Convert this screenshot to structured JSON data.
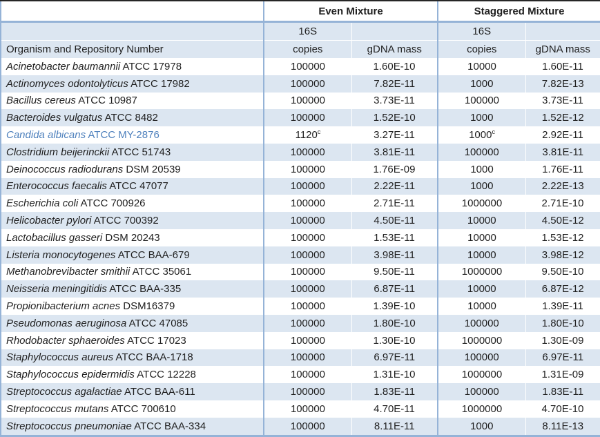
{
  "table": {
    "organism_header": "Organism and Repository Number",
    "group_headers": {
      "even": "Even Mixture",
      "staggered": "Staggered Mixture"
    },
    "subheaders": {
      "line1": "16S",
      "copies": "copies",
      "gdna_mass": "gDNA mass"
    },
    "footnote_marker": "c",
    "rows": [
      {
        "name": "Acinetobacter baumannii",
        "repo": "ATCC 17978",
        "even_copies": "100000",
        "even_sup": "",
        "even_mass": "1.60E-10",
        "stag_copies": "10000",
        "stag_sup": "",
        "stag_mass": "1.60E-11",
        "highlight": false
      },
      {
        "name": "Actinomyces odontolyticus",
        "repo": "ATCC 17982",
        "even_copies": "100000",
        "even_sup": "",
        "even_mass": "7.82E-11",
        "stag_copies": "1000",
        "stag_sup": "",
        "stag_mass": "7.82E-13",
        "highlight": false
      },
      {
        "name": "Bacillus cereus",
        "repo": "ATCC 10987",
        "even_copies": "100000",
        "even_sup": "",
        "even_mass": "3.73E-11",
        "stag_copies": "100000",
        "stag_sup": "",
        "stag_mass": "3.73E-11",
        "highlight": false
      },
      {
        "name": "Bacteroides vulgatus",
        "repo": "ATCC 8482",
        "even_copies": "100000",
        "even_sup": "",
        "even_mass": "1.52E-10",
        "stag_copies": "1000",
        "stag_sup": "",
        "stag_mass": "1.52E-12",
        "highlight": false
      },
      {
        "name": "Candida albicans",
        "repo": "ATCC MY-2876",
        "even_copies": "1120",
        "even_sup": "c",
        "even_mass": "3.27E-11",
        "stag_copies": "1000",
        "stag_sup": "c",
        "stag_mass": "2.92E-11",
        "highlight": true
      },
      {
        "name": "Clostridium beijerinckii",
        "repo": "ATCC 51743",
        "even_copies": "100000",
        "even_sup": "",
        "even_mass": "3.81E-11",
        "stag_copies": "100000",
        "stag_sup": "",
        "stag_mass": "3.81E-11",
        "highlight": false
      },
      {
        "name": "Deinococcus radiodurans",
        "repo": "DSM 20539",
        "even_copies": "100000",
        "even_sup": "",
        "even_mass": "1.76E-09",
        "stag_copies": "1000",
        "stag_sup": "",
        "stag_mass": "1.76E-11",
        "highlight": false
      },
      {
        "name": "Enterococcus faecalis",
        "repo": "ATCC 47077",
        "even_copies": "100000",
        "even_sup": "",
        "even_mass": "2.22E-11",
        "stag_copies": "1000",
        "stag_sup": "",
        "stag_mass": "2.22E-13",
        "highlight": false
      },
      {
        "name": "Escherichia coli",
        "repo": "ATCC 700926",
        "even_copies": "100000",
        "even_sup": "",
        "even_mass": "2.71E-11",
        "stag_copies": "1000000",
        "stag_sup": "",
        "stag_mass": "2.71E-10",
        "highlight": false
      },
      {
        "name": "Helicobacter pylori",
        "repo": "ATCC 700392",
        "even_copies": "100000",
        "even_sup": "",
        "even_mass": "4.50E-11",
        "stag_copies": "10000",
        "stag_sup": "",
        "stag_mass": "4.50E-12",
        "highlight": false
      },
      {
        "name": "Lactobacillus gasseri",
        "repo": "DSM 20243",
        "even_copies": "100000",
        "even_sup": "",
        "even_mass": "1.53E-11",
        "stag_copies": "10000",
        "stag_sup": "",
        "stag_mass": "1.53E-12",
        "highlight": false
      },
      {
        "name": "Listeria monocytogenes",
        "repo": "ATCC BAA-679",
        "even_copies": "100000",
        "even_sup": "",
        "even_mass": "3.98E-11",
        "stag_copies": "10000",
        "stag_sup": "",
        "stag_mass": "3.98E-12",
        "highlight": false
      },
      {
        "name": "Methanobrevibacter smithii",
        "repo": "ATCC 35061",
        "even_copies": "100000",
        "even_sup": "",
        "even_mass": "9.50E-11",
        "stag_copies": "1000000",
        "stag_sup": "",
        "stag_mass": "9.50E-10",
        "highlight": false
      },
      {
        "name": "Neisseria meningitidis",
        "repo": "ATCC BAA-335",
        "even_copies": "100000",
        "even_sup": "",
        "even_mass": "6.87E-11",
        "stag_copies": "10000",
        "stag_sup": "",
        "stag_mass": "6.87E-12",
        "highlight": false
      },
      {
        "name": "Propionibacterium acnes",
        "repo": "DSM16379",
        "even_copies": "100000",
        "even_sup": "",
        "even_mass": "1.39E-10",
        "stag_copies": "10000",
        "stag_sup": "",
        "stag_mass": "1.39E-11",
        "highlight": false
      },
      {
        "name": "Pseudomonas aeruginosa",
        "repo": "ATCC 47085",
        "even_copies": "100000",
        "even_sup": "",
        "even_mass": "1.80E-10",
        "stag_copies": "100000",
        "stag_sup": "",
        "stag_mass": "1.80E-10",
        "highlight": false
      },
      {
        "name": "Rhodobacter sphaeroides",
        "repo": "ATCC 17023",
        "even_copies": "100000",
        "even_sup": "",
        "even_mass": "1.30E-10",
        "stag_copies": "1000000",
        "stag_sup": "",
        "stag_mass": "1.30E-09",
        "highlight": false
      },
      {
        "name": "Staphylococcus aureus",
        "repo": "ATCC BAA-1718",
        "even_copies": "100000",
        "even_sup": "",
        "even_mass": "6.97E-11",
        "stag_copies": "100000",
        "stag_sup": "",
        "stag_mass": "6.97E-11",
        "highlight": false
      },
      {
        "name": "Staphylococcus epidermidis",
        "repo": "ATCC 12228",
        "even_copies": "100000",
        "even_sup": "",
        "even_mass": "1.31E-10",
        "stag_copies": "1000000",
        "stag_sup": "",
        "stag_mass": "1.31E-09",
        "highlight": false
      },
      {
        "name": "Streptococcus agalactiae",
        "repo": "ATCC BAA-611",
        "even_copies": "100000",
        "even_sup": "",
        "even_mass": "1.83E-11",
        "stag_copies": "100000",
        "stag_sup": "",
        "stag_mass": "1.83E-11",
        "highlight": false
      },
      {
        "name": "Streptococcus mutans",
        "repo": "ATCC 700610",
        "even_copies": "100000",
        "even_sup": "",
        "even_mass": "4.70E-11",
        "stag_copies": "1000000",
        "stag_sup": "",
        "stag_mass": "4.70E-10",
        "highlight": false
      },
      {
        "name": "Streptococcus pneumoniae",
        "repo": "ATCC BAA-334",
        "even_copies": "100000",
        "even_sup": "",
        "even_mass": "8.11E-11",
        "stag_copies": "1000",
        "stag_sup": "",
        "stag_mass": "8.11E-13",
        "highlight": false
      }
    ]
  },
  "colors": {
    "band-fill": "#dce6f1",
    "border-blue": "#95b3d7",
    "highlight-text": "#4f81bd",
    "top-border": "#262626"
  }
}
